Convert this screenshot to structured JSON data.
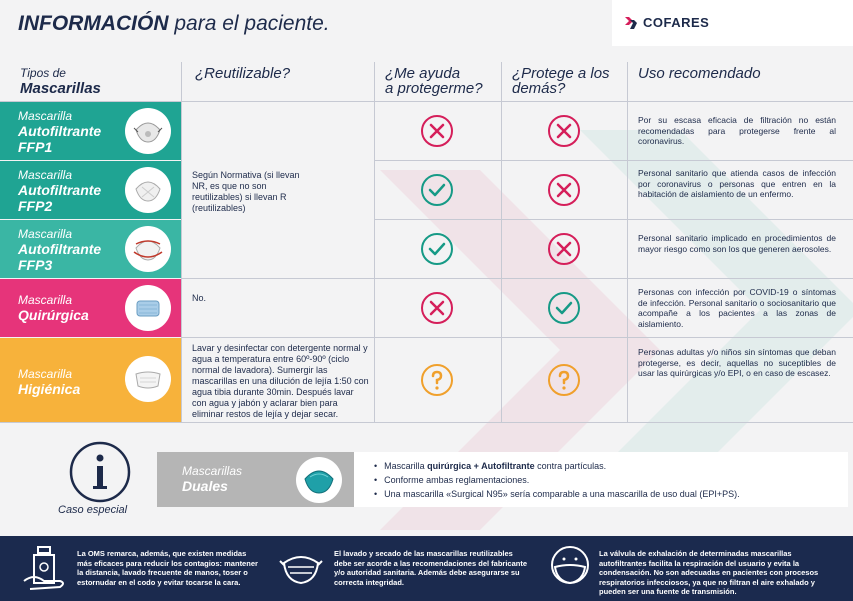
{
  "header": {
    "title_bold": "INFORMACIÓN",
    "title_rest": "para el paciente.",
    "logo_text": "COFARES"
  },
  "columns": {
    "tipos_line1": "Tipos de",
    "tipos_line2": "Mascarillas",
    "reutilizable": "¿Reutilizable?",
    "me_ayuda_line1": "¿Me ayuda",
    "me_ayuda_line2": "a protegerme?",
    "protege_line1": "¿Protege a los",
    "protege_line2": "demás?",
    "uso": "Uso recomendado"
  },
  "colors": {
    "ffp": "#1fa493",
    "ffp3": "#3ab6a4",
    "quirurgica": "#e6347a",
    "higienica": "#f7b23b",
    "cross": "#d51e5a",
    "check": "#169a86",
    "question": "#f0a02c",
    "navy": "#1b2a4e"
  },
  "rows": [
    {
      "name_line1": "Mascarilla",
      "name_line2": "Autofiltrante",
      "name_line3": "FFP1",
      "mask_icon": "ffp1-mask-icon",
      "me_ayuda": "cross",
      "protege": "cross",
      "uso": "Por su escasa eficacia de filtración no están recomendadas para protegerse frente al coronavirus."
    },
    {
      "name_line1": "Mascarilla",
      "name_line2": "Autofiltrante",
      "name_line3": "FFP2",
      "mask_icon": "ffp2-mask-icon",
      "me_ayuda": "check",
      "protege": "cross",
      "uso": "Personal sanitario que atienda casos de infección por coronavirus o personas que entren en la habitación de aislamiento de un enfermo."
    },
    {
      "name_line1": "Mascarilla",
      "name_line2": "Autofiltrante",
      "name_line3": "FFP3",
      "mask_icon": "ffp3-mask-icon",
      "me_ayuda": "check",
      "protege": "cross",
      "uso": "Personal sanitario implicado en procedimientos de mayor riesgo como son los que generen aerosoles."
    },
    {
      "name_line1": "Mascarilla",
      "name_line2": "Quirúrgica",
      "name_line3": "",
      "mask_icon": "surgical-mask-icon",
      "me_ayuda": "cross",
      "protege": "check",
      "uso": "Personas con infección por COVID-19 o síntomas de infección. Personal sanitario o sociosanitario que acompañe a los pacientes a las zonas de aislamiento."
    },
    {
      "name_line1": "Mascarilla",
      "name_line2": "Higiénica",
      "name_line3": "",
      "mask_icon": "hygienic-mask-icon",
      "me_ayuda": "question",
      "protege": "question",
      "uso": "Personas adultas y/o niños sin síntomas que deban protegerse, es decir, aquellas no suceptibles de usar las quirúrgicas y/o EPI, o en caso de escasez."
    }
  ],
  "reutilizable": {
    "ffp": "Según Normativa (si llevan NR, es que no son reutilizables) si llevan R (reutilizables)",
    "quirurgica": "No.",
    "higienica": "Lavar y desinfectar con detergente normal y agua a temperatura entre 60º-90º (ciclo normal de lavadora). Sumergir las mascarillas en una dilución de lejía 1:50 con agua tibia durante 30min. Después lavar con agua y jabón y aclarar bien para eliminar restos de lejía y dejar secar."
  },
  "special": {
    "caso": "Caso especial",
    "duales_line1": "Mascarillas",
    "duales_line2": "Duales",
    "bullet1_pre": "Mascarilla ",
    "bullet1_bold": "quirúrgica + Autofiltrante",
    "bullet1_post": " contra partículas.",
    "bullet2": "Conforme ambas reglamentaciones.",
    "bullet3": "Una mascarilla «Surgical N95» sería comparable a una mascarilla de uso dual (EPI+PS)."
  },
  "footer": {
    "text1": "La OMS remarca, además, que existen medidas más eficaces para reducir los contagios: mantener la distancia, lavado frecuente de manos, toser o estornudar en el codo y evitar tocarse la cara.",
    "text2": "El lavado y secado de las mascarillas reutilizables debe ser acorde a las recomendaciones del fabricante y/o autoridad sanitaria. Además debe asegurarse su correcta integridad.",
    "text3": "La válvula de exhalación de determinadas mascarillas autofiltrantes facilita la respiración del usuario y evita la condensación. No son adecuadas en pacientes con procesos respiratorios infecciosos, ya que no filtran el aire exhalado y pueden ser una fuente de transmisión."
  }
}
